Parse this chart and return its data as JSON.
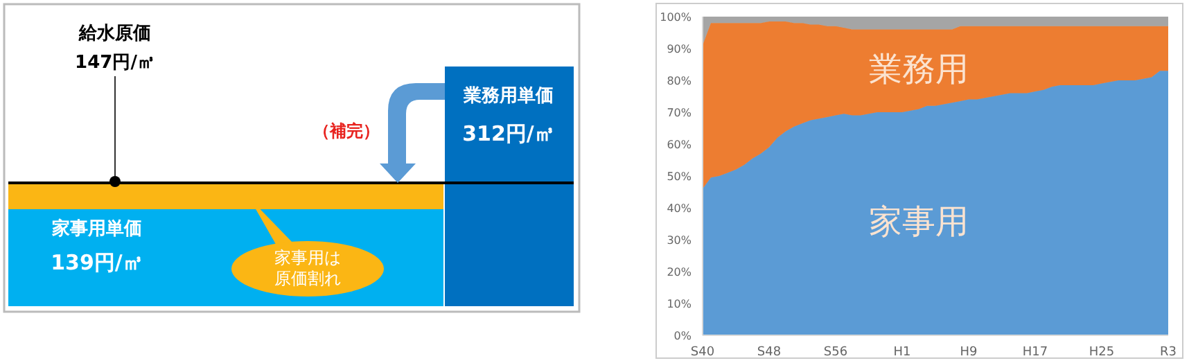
{
  "chart_data": [
    {
      "type": "other",
      "annotations": [
        "給水原価",
        "147円/㎥",
        "業務用単価",
        "312円/㎥",
        "（補完）",
        "家事用単価",
        "139円/㎥",
        "家事用は原価割れ"
      ]
    },
    {
      "type": "area",
      "stacked": true,
      "categories": [
        "S40",
        null,
        null,
        null,
        null,
        null,
        null,
        null,
        "S48",
        null,
        null,
        null,
        null,
        null,
        null,
        null,
        "S56",
        null,
        null,
        null,
        null,
        null,
        null,
        null,
        "H1",
        null,
        null,
        null,
        null,
        null,
        null,
        null,
        "H9",
        null,
        null,
        null,
        null,
        null,
        null,
        null,
        "H17",
        null,
        null,
        null,
        null,
        null,
        null,
        null,
        "H25",
        null,
        null,
        null,
        null,
        null,
        null,
        null,
        "R3"
      ],
      "series": [
        {
          "name": "家事用",
          "color": "#5b9bd5",
          "values": [
            46,
            49.5,
            50,
            51,
            52,
            53.5,
            55.5,
            57,
            59,
            62,
            64,
            65.5,
            66.5,
            67.5,
            68,
            68.5,
            69,
            69.5,
            69,
            69,
            69.5,
            70,
            70,
            70,
            70,
            70.5,
            71,
            72,
            72,
            72.5,
            73,
            73.5,
            74,
            74,
            74.5,
            75,
            75.5,
            76,
            76,
            76,
            76.5,
            77,
            78,
            78.5,
            78.5,
            78.5,
            78.5,
            78.5,
            79,
            79.5,
            80,
            80,
            80,
            80.5,
            81,
            83,
            83
          ]
        },
        {
          "name": "業務用",
          "color": "#ed7d31",
          "values": [
            45,
            48.5,
            48,
            47,
            46,
            44.5,
            42.5,
            41,
            39.5,
            36.5,
            34.5,
            32.5,
            31.5,
            30,
            29.5,
            28.5,
            28,
            27,
            27,
            27,
            26.5,
            26,
            26,
            26,
            26,
            25.5,
            25,
            24,
            24,
            23.5,
            23,
            23.5,
            23,
            23,
            22.5,
            22,
            21.5,
            21,
            21,
            21,
            20.5,
            20,
            19,
            18.5,
            18.5,
            18.5,
            18.5,
            18.5,
            18,
            17.5,
            17,
            17,
            17,
            16.5,
            16,
            14,
            14
          ]
        },
        {
          "color": "#a5a5a5",
          "values": [
            9,
            2,
            2,
            2,
            2,
            2,
            2,
            2,
            1.5,
            1.5,
            1.5,
            2,
            2,
            2.5,
            2.5,
            3,
            3,
            3.5,
            4,
            4,
            4,
            4,
            4,
            4,
            4,
            4,
            4,
            4,
            4,
            4,
            4,
            3,
            3,
            3,
            3,
            3,
            3,
            3,
            3,
            3,
            3,
            3,
            3,
            3,
            3,
            3,
            3,
            3,
            3,
            3,
            3,
            3,
            3,
            3,
            3,
            3,
            3
          ]
        }
      ],
      "ylim": [
        0,
        100
      ],
      "yticks": [
        {
          "value": 0,
          "label": "0%"
        },
        {
          "value": 10,
          "label": "10%"
        },
        {
          "value": 20,
          "label": "20%"
        },
        {
          "value": 30,
          "label": "30%"
        },
        {
          "value": 40,
          "label": "40%"
        },
        {
          "value": 50,
          "label": "50%"
        },
        {
          "value": 60,
          "label": "60%"
        },
        {
          "value": 70,
          "label": "70%"
        },
        {
          "value": 80,
          "label": "80%"
        },
        {
          "value": 90,
          "label": "90%"
        },
        {
          "value": 100,
          "label": "100%"
        }
      ]
    }
  ]
}
